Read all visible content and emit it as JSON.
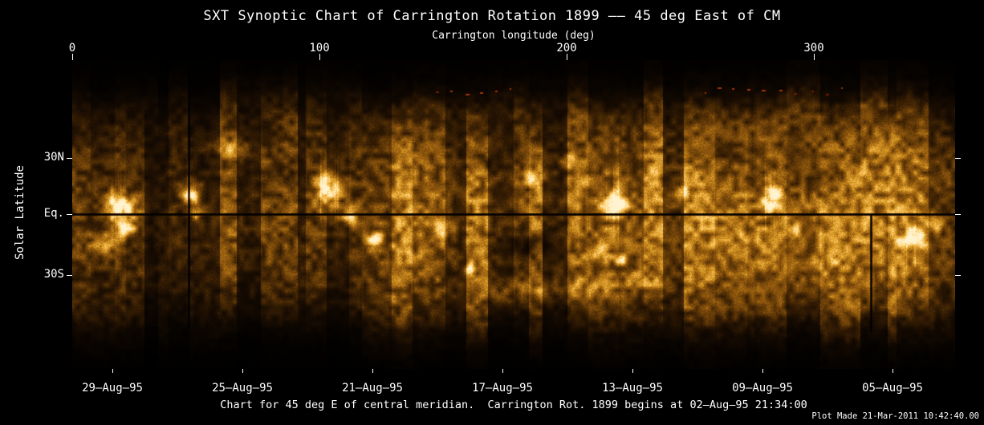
{
  "page": {
    "background": "#000000",
    "text_color": "#ffffff"
  },
  "title": "SXT Synoptic Chart of Carrington Rotation 1899 —— 45 deg East of CM",
  "axes": {
    "top_label": "Carrington longitude (deg)",
    "left_label": "Solar Latitude"
  },
  "caption": "Chart for 45 deg E of central meridian.  Carrington Rot. 1899 begins at 02—Aug—95 21:34:00",
  "credit": "Plot Made 21-Mar-2011 10:42:40.00",
  "chart_data": {
    "type": "heatmap",
    "title": "SXT Synoptic Chart of Carrington Rotation 1899 —— 45 deg East of CM",
    "xlabel": "Carrington longitude (deg)",
    "ylabel": "Solar Latitude",
    "xlim": [
      0,
      360
    ],
    "x_ticks": [
      0,
      100,
      200,
      300
    ],
    "y_tick_labels": [
      "30N",
      "Eq.",
      "30S"
    ],
    "date_ticks": [
      "29—Aug—95",
      "25—Aug—95",
      "21—Aug—95",
      "17—Aug—95",
      "13—Aug—95",
      "09—Aug—95",
      "05—Aug—95"
    ],
    "rotation_start": "02—Aug—95 21:34:00",
    "viewpoint": "45 deg East of CM",
    "grid": false,
    "equator_line": true,
    "background": "#000000",
    "colormap": [
      "#000000",
      "#160b02",
      "#3a2004",
      "#6b3f08",
      "#9a5f10",
      "#c98a1c",
      "#f0b240",
      "#ffd478",
      "#fff3cf"
    ],
    "data_gap_lines": [
      {
        "longitude": 47,
        "lat_from": -58,
        "lat_to": 75
      },
      {
        "longitude": 323,
        "lat_from": -60,
        "lat_to": 0
      }
    ],
    "active_regions": [
      {
        "longitude": 19,
        "latitude": 4,
        "intensity": 1.05,
        "sigma_lon_deg": 4.2,
        "sigma_lat_deg": 4.5,
        "streaks": true
      },
      {
        "longitude": 21,
        "latitude": -6,
        "intensity": 0.75,
        "sigma_lon_deg": 3.2,
        "sigma_lat_deg": 3.3
      },
      {
        "longitude": 13,
        "latitude": -15,
        "intensity": 0.42,
        "sigma_lon_deg": 3.9,
        "sigma_lat_deg": 4.1
      },
      {
        "longitude": 48,
        "latitude": 10,
        "intensity": 0.85,
        "sigma_lon_deg": 2.3,
        "sigma_lat_deg": 3.7,
        "streaks": true
      },
      {
        "longitude": 50,
        "latitude": 1,
        "intensity": 0.5,
        "sigma_lon_deg": 1.9,
        "sigma_lat_deg": 2.5
      },
      {
        "longitude": 63,
        "latitude": 34,
        "intensity": 0.33,
        "sigma_lon_deg": 5.2,
        "sigma_lat_deg": 2.9
      },
      {
        "longitude": 104,
        "latitude": 13,
        "intensity": 0.95,
        "sigma_lon_deg": 3.6,
        "sigma_lat_deg": 5.8,
        "streaks": true
      },
      {
        "longitude": 112,
        "latitude": -1,
        "intensity": 0.5,
        "sigma_lon_deg": 2.6,
        "sigma_lat_deg": 3.3
      },
      {
        "longitude": 122,
        "latitude": -13,
        "intensity": 0.7,
        "sigma_lon_deg": 2.3,
        "sigma_lat_deg": 2.9
      },
      {
        "longitude": 150,
        "latitude": -8,
        "intensity": 0.35,
        "sigma_lon_deg": 3.2,
        "sigma_lat_deg": 3.3
      },
      {
        "longitude": 160,
        "latitude": -28,
        "intensity": 0.5,
        "sigma_lon_deg": 1.3,
        "sigma_lat_deg": 1.6
      },
      {
        "longitude": 186,
        "latitude": 19,
        "intensity": 0.42,
        "sigma_lon_deg": 3.2,
        "sigma_lat_deg": 2.9
      },
      {
        "longitude": 201,
        "latitude": 27,
        "intensity": 0.33,
        "sigma_lon_deg": 2.6,
        "sigma_lat_deg": 2.5
      },
      {
        "longitude": 220,
        "latitude": 6,
        "intensity": 1.0,
        "sigma_lon_deg": 3.6,
        "sigma_lat_deg": 3.7,
        "streaks": true
      },
      {
        "longitude": 213,
        "latitude": -19,
        "intensity": 0.68,
        "sigma_lon_deg": 2.6,
        "sigma_lat_deg": 2.5
      },
      {
        "longitude": 222,
        "latitude": -23,
        "intensity": 0.45,
        "sigma_lon_deg": 1.9,
        "sigma_lat_deg": 2.1
      },
      {
        "longitude": 246,
        "latitude": 12,
        "intensity": 0.33,
        "sigma_lon_deg": 2.9,
        "sigma_lat_deg": 2.9
      },
      {
        "longitude": 283,
        "latitude": 8,
        "intensity": 0.8,
        "sigma_lon_deg": 2.6,
        "sigma_lat_deg": 4.5,
        "streaks": true
      },
      {
        "longitude": 291,
        "latitude": -8,
        "intensity": 0.4,
        "sigma_lon_deg": 2.6,
        "sigma_lat_deg": 2.9
      },
      {
        "longitude": 340,
        "latitude": -13,
        "intensity": 0.85,
        "sigma_lon_deg": 3.6,
        "sigma_lat_deg": 3.3,
        "streaks": true
      },
      {
        "longitude": 349,
        "latitude": -5,
        "intensity": 0.55,
        "sigma_lon_deg": 2.3,
        "sigma_lat_deg": 2.5
      },
      {
        "longitude": 205,
        "latitude": -38,
        "intensity": 0.26,
        "sigma_lon_deg": 11.4,
        "sigma_lat_deg": 3.3
      },
      {
        "longitude": 228,
        "latitude": -33,
        "intensity": 0.22,
        "sigma_lon_deg": 9.1,
        "sigma_lat_deg": 2.9
      },
      {
        "longitude": 178,
        "latitude": -40,
        "intensity": 0.2,
        "sigma_lon_deg": 9.7,
        "sigma_lat_deg": 3.7
      },
      {
        "longitude": 305,
        "latitude": -23,
        "intensity": 0.3,
        "sigma_lon_deg": 3.5,
        "sigma_lat_deg": 3.5
      },
      {
        "longitude": 273,
        "latitude": -13,
        "intensity": 0.3,
        "sigma_lon_deg": 3.2,
        "sigma_lat_deg": 3.3
      }
    ],
    "dark_patches": [
      {
        "longitude": 184,
        "latitude": -17,
        "depth": 0.28,
        "sigma_lon_deg": 7.8,
        "sigma_lat_deg": 5.3
      },
      {
        "longitude": 298,
        "latitude": 22,
        "depth": 0.18,
        "sigma_lon_deg": 12.3,
        "sigma_lat_deg": 9.0
      },
      {
        "longitude": 262,
        "latitude": 30,
        "depth": 0.15,
        "sigma_lon_deg": 9.7,
        "sigma_lat_deg": 5.8
      },
      {
        "longitude": 168,
        "latitude": 27,
        "depth": 0.12,
        "sigma_lon_deg": 8.1,
        "sigma_lat_deg": 4.9
      },
      {
        "longitude": 88,
        "latitude": 22,
        "depth": 0.12,
        "sigma_lon_deg": 5.8,
        "sigma_lat_deg": 5.8
      }
    ],
    "polar_speckle_longitudes": [
      147,
      153,
      159,
      165,
      171,
      177,
      256,
      261,
      267,
      273,
      279,
      286,
      292,
      299,
      305,
      311
    ],
    "speckle_colors": [
      "#6e1c05",
      "#a33207"
    ]
  }
}
